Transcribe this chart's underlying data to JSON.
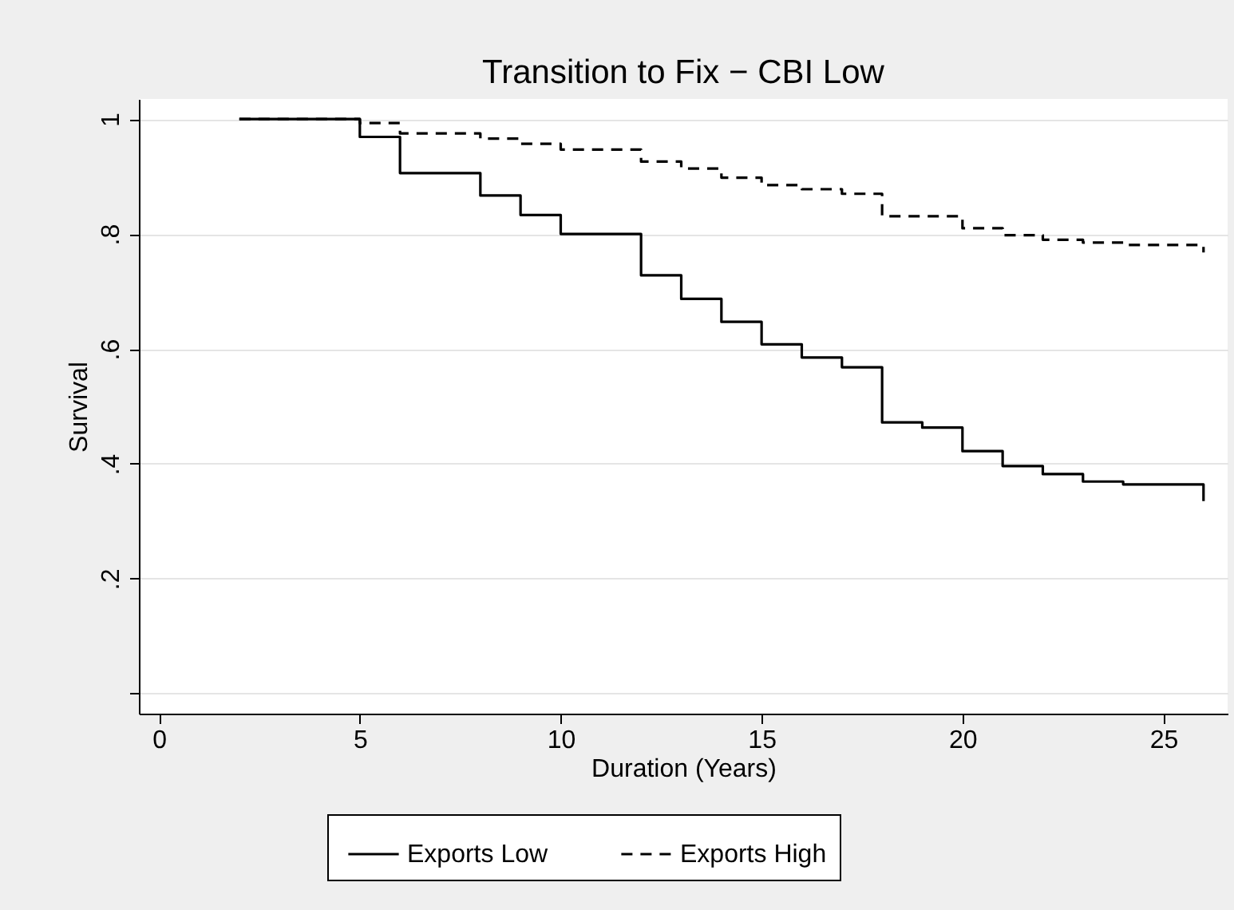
{
  "chart_data": {
    "type": "step",
    "title": "Transition to Fix − CBI Low",
    "xlabel": "Duration (Years)",
    "ylabel": "Survival",
    "xlim": [
      -0.5,
      26.6
    ],
    "xticks": [
      0,
      5,
      10,
      15,
      20,
      25
    ],
    "ylim": [
      -0.035,
      1.035
    ],
    "yticks": [
      {
        "value": 0,
        "label": null
      },
      {
        "value": 0.2,
        "label": ".2"
      },
      {
        "value": 0.4,
        "label": ".4"
      },
      {
        "value": 0.6,
        "label": ".6"
      },
      {
        "value": 0.8,
        "label": ".8"
      },
      1
    ],
    "grid": "y",
    "legend": "bottom",
    "series": [
      {
        "name": "Exports Low",
        "color": "#000000",
        "line_style": "solid",
        "x": [
          2,
          5,
          6,
          8,
          9,
          10,
          12,
          13,
          14,
          15,
          16,
          17,
          18,
          19,
          20,
          21,
          22,
          23,
          24,
          26
        ],
        "values": [
          1,
          0.969,
          0.906,
          0.867,
          0.833,
          0.8,
          0.728,
          0.687,
          0.647,
          0.608,
          0.585,
          0.568,
          0.472,
          0.463,
          0.422,
          0.396,
          0.382,
          0.369,
          0.364,
          0.335
        ]
      },
      {
        "name": "Exports High",
        "color": "#000000",
        "line_style": "dashed",
        "x": [
          2,
          5,
          6,
          8,
          9,
          10,
          12,
          13,
          14,
          15,
          16,
          17,
          18,
          20,
          21,
          22,
          23,
          24,
          26
        ],
        "values": [
          1,
          0.993,
          0.975,
          0.966,
          0.957,
          0.947,
          0.926,
          0.914,
          0.898,
          0.885,
          0.878,
          0.87,
          0.831,
          0.81,
          0.798,
          0.79,
          0.785,
          0.781,
          0.768
        ]
      }
    ]
  }
}
